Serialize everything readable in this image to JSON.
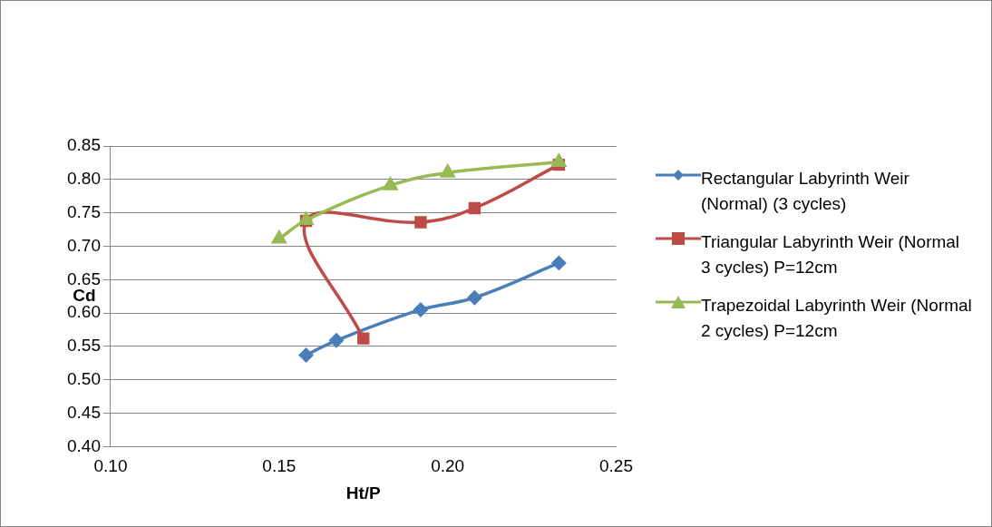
{
  "chart_data": {
    "type": "line",
    "xlabel": "Ht/P",
    "ylabel": "Cd",
    "xlim": [
      0.1,
      0.25
    ],
    "xticks": [
      {
        "value": 0.1,
        "label": "0.10"
      },
      {
        "value": 0.15,
        "label": "0.15"
      },
      {
        "value": 0.2,
        "label": "0.20"
      },
      {
        "value": 0.25,
        "label": "0.25"
      }
    ],
    "ylim": [
      0.4,
      0.85
    ],
    "yticks": [
      {
        "value": 0.4,
        "label": "0.40"
      },
      {
        "value": 0.45,
        "label": "0.45"
      },
      {
        "value": 0.5,
        "label": "0.50"
      },
      {
        "value": 0.55,
        "label": "0.55"
      },
      {
        "value": 0.6,
        "label": "0.60"
      },
      {
        "value": 0.65,
        "label": "0.65"
      },
      {
        "value": 0.7,
        "label": "0.70"
      },
      {
        "value": 0.75,
        "label": "0.75"
      },
      {
        "value": 0.8,
        "label": "0.80"
      },
      {
        "value": 0.85,
        "label": "0.85"
      }
    ],
    "grid": "y",
    "legend": "right",
    "series": [
      {
        "name": "Rectangular Labyrinth Weir (Normal) (3 cycles)",
        "color": "#4a7ebb",
        "marker": "diamond",
        "x": [
          0.158,
          0.167,
          0.192,
          0.208,
          0.233
        ],
        "values": [
          0.537,
          0.559,
          0.605,
          0.623,
          0.675
        ]
      },
      {
        "name": "Triangular Labyrinth Weir (Normal 3 cycles) P=12cm",
        "color": "#be4b48",
        "marker": "square",
        "x": [
          0.175,
          0.158,
          0.192,
          0.208,
          0.233
        ],
        "values": [
          0.562,
          0.738,
          0.736,
          0.757,
          0.822
        ]
      },
      {
        "name": "Trapezoidal Labyrinth Weir (Normal 2 cycles) P=12cm",
        "color": "#98b954",
        "marker": "triangle",
        "x": [
          0.15,
          0.158,
          0.183,
          0.2,
          0.233
        ],
        "values": [
          0.711,
          0.739,
          0.791,
          0.81,
          0.826
        ]
      }
    ]
  }
}
